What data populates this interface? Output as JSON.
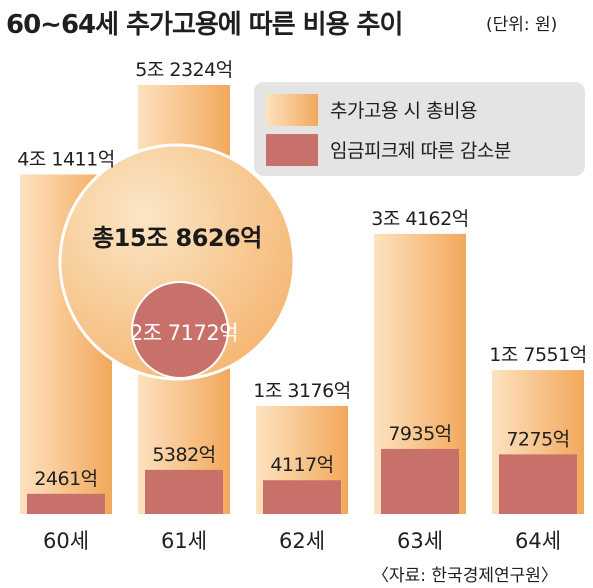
{
  "title": "60~64세 추가고용에 따른 비용 추이",
  "unit": "(단위: 원)",
  "source": "〈자료: 한국경제연구원〉",
  "total": {
    "label": "총15조 8626억",
    "reduction_label": "2조 7172억"
  },
  "legend": [
    {
      "label": "추가고용 시 총비용",
      "swatch": "total"
    },
    {
      "label": "임금피크제 따른 감소분",
      "swatch": "reduction"
    }
  ],
  "colors": {
    "total_light": "#fde2bf",
    "total_dark": "#f2a85c",
    "reduction": "#c8716a",
    "circle_light": "#fbe6c6",
    "circle_dark": "#f5b46e"
  },
  "chart_data": {
    "type": "bar",
    "categories": [
      "60세",
      "61세",
      "62세",
      "63세",
      "64세"
    ],
    "series": [
      {
        "name": "추가고용 시 총비용",
        "values": [
          41411,
          52324,
          13176,
          34162,
          17551
        ]
      },
      {
        "name": "임금피크제 따른 감소분",
        "values": [
          2461,
          5382,
          4117,
          7935,
          7275
        ]
      }
    ],
    "value_labels": {
      "total": [
        "4조 1411억",
        "5조 2324억",
        "1조 3176억",
        "3조 4162억",
        "1조 7551억"
      ],
      "reduction": [
        "2461억",
        "5382억",
        "4117억",
        "7935억",
        "7275억"
      ]
    },
    "unit": "억원",
    "ylim": [
      0,
      52324
    ],
    "legend_position": "top-right"
  }
}
